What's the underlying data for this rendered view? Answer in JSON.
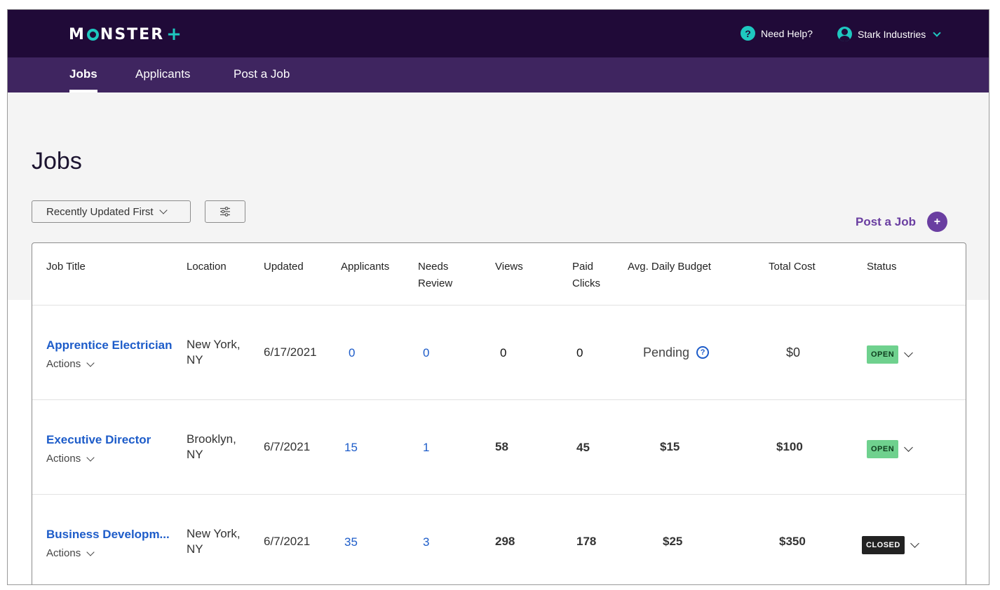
{
  "header": {
    "logo_text_m": "M",
    "logo_text_rest": "NSTER",
    "logo_plus": "+",
    "help_label": "Need Help?",
    "help_icon": "question-icon",
    "account_name": "Stark Industries",
    "account_icon": "user-icon"
  },
  "nav": {
    "items": [
      {
        "label": "Jobs",
        "active": true
      },
      {
        "label": "Applicants",
        "active": false
      },
      {
        "label": "Post a Job",
        "active": false
      }
    ]
  },
  "page": {
    "title": "Jobs",
    "sort_label": "Recently Updated First",
    "filter_icon": "sliders-icon",
    "post_job_label": "Post a Job",
    "post_job_icon": "+"
  },
  "table": {
    "headers": {
      "job_title": "Job Title",
      "location": "Location",
      "updated": "Updated",
      "applicants": "Applicants",
      "needs_review_1": "Needs",
      "needs_review_2": "Review",
      "views": "Views",
      "paid_clicks_1": "Paid",
      "paid_clicks_2": "Clicks",
      "budget": "Avg. Daily Budget",
      "total_cost": "Total Cost",
      "status": "Status"
    },
    "rows": [
      {
        "title": "Apprentice Electrician",
        "actions": "Actions",
        "location_1": "New York,",
        "location_2": "NY",
        "updated": "6/17/2021",
        "applicants": "0",
        "needs_review": "0",
        "views": "0",
        "paid_clicks": "0",
        "budget": "Pending",
        "total_cost": "$0",
        "status": "OPEN"
      },
      {
        "title": "Executive Director",
        "actions": "Actions",
        "location_1": "Brooklyn,",
        "location_2": "NY",
        "updated": "6/7/2021",
        "applicants": "15",
        "needs_review": "1",
        "views": "58",
        "paid_clicks": "45",
        "budget": "$15",
        "total_cost": "$100",
        "status": "OPEN"
      },
      {
        "title": "Business Developm...",
        "actions": "Actions",
        "location_1": "New York,",
        "location_2": "NY",
        "updated": "6/7/2021",
        "applicants": "35",
        "needs_review": "3",
        "views": "298",
        "paid_clicks": "178",
        "budget": "$25",
        "total_cost": "$350",
        "status": "CLOSED"
      }
    ]
  },
  "colors": {
    "topbar": "#200a38",
    "navbar": "#3f2560",
    "accent_teal": "#1ec8c0",
    "link_blue": "#1d5cc9",
    "purple": "#6a3ea1",
    "open_badge": "#6fd18e",
    "closed_badge": "#222222"
  }
}
